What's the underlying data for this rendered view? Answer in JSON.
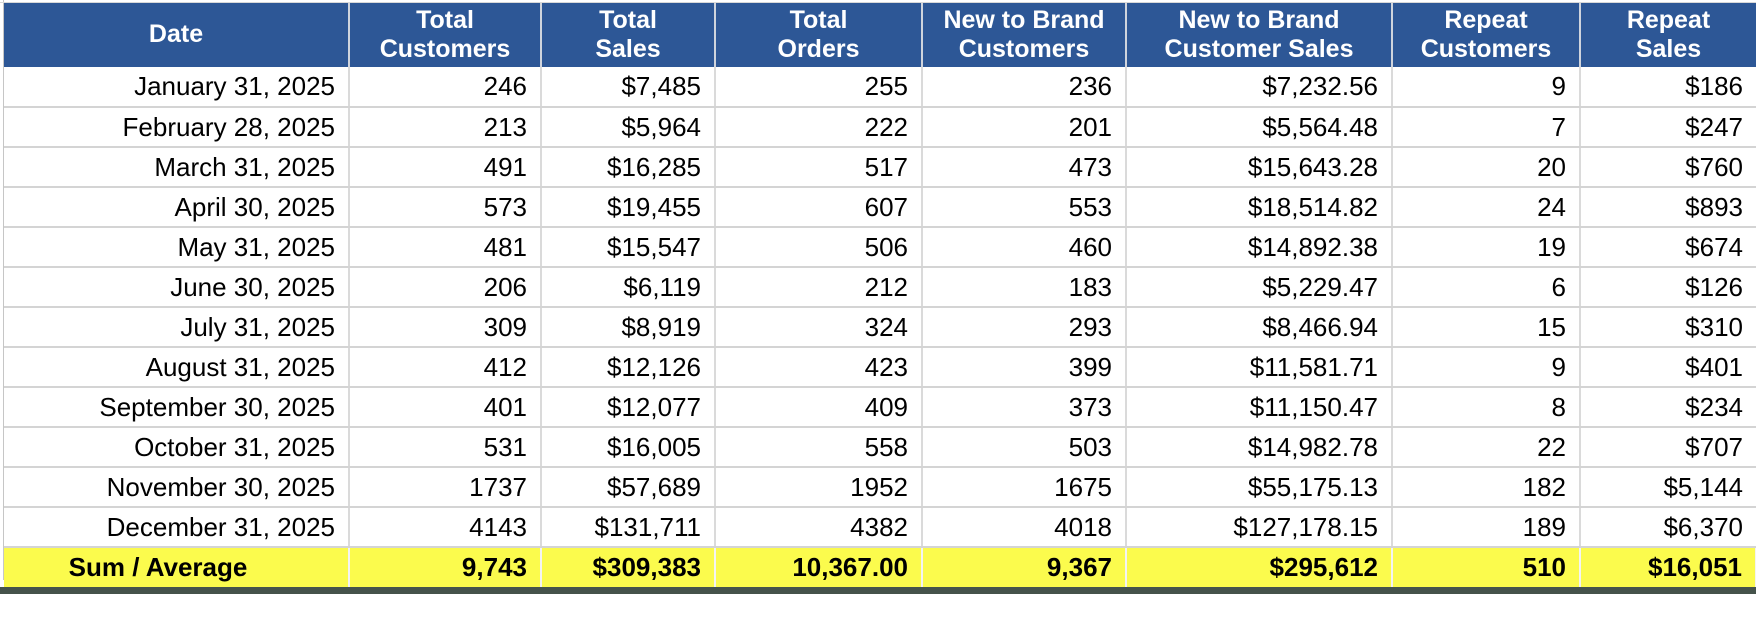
{
  "chart_data": {
    "type": "table",
    "columns": [
      "Date",
      "Total\nCustomers",
      "Total\nSales",
      "Total\nOrders",
      "New to Brand\nCustomers",
      "New to Brand\nCustomer Sales",
      "Repeat\nCustomers",
      "Repeat\nSales"
    ],
    "rows": [
      [
        "January 31, 2025",
        "246",
        "$7,485",
        "255",
        "236",
        "$7,232.56",
        "9",
        "$186"
      ],
      [
        "February 28, 2025",
        "213",
        "$5,964",
        "222",
        "201",
        "$5,564.48",
        "7",
        "$247"
      ],
      [
        "March 31, 2025",
        "491",
        "$16,285",
        "517",
        "473",
        "$15,643.28",
        "20",
        "$760"
      ],
      [
        "April 30, 2025",
        "573",
        "$19,455",
        "607",
        "553",
        "$18,514.82",
        "24",
        "$893"
      ],
      [
        "May 31, 2025",
        "481",
        "$15,547",
        "506",
        "460",
        "$14,892.38",
        "19",
        "$674"
      ],
      [
        "June 30, 2025",
        "206",
        "$6,119",
        "212",
        "183",
        "$5,229.47",
        "6",
        "$126"
      ],
      [
        "July 31, 2025",
        "309",
        "$8,919",
        "324",
        "293",
        "$8,466.94",
        "15",
        "$310"
      ],
      [
        "August 31, 2025",
        "412",
        "$12,126",
        "423",
        "399",
        "$11,581.71",
        "9",
        "$401"
      ],
      [
        "September 30, 2025",
        "401",
        "$12,077",
        "409",
        "373",
        "$11,150.47",
        "8",
        "$234"
      ],
      [
        "October 31, 2025",
        "531",
        "$16,005",
        "558",
        "503",
        "$14,982.78",
        "22",
        "$707"
      ],
      [
        "November 30, 2025",
        "1737",
        "$57,689",
        "1952",
        "1675",
        "$55,175.13",
        "182",
        "$5,144"
      ],
      [
        "December 31, 2025",
        "4143",
        "$131,711",
        "4382",
        "4018",
        "$127,178.15",
        "189",
        "$6,370"
      ]
    ],
    "summary": [
      "Sum / Average",
      "9,743",
      "$309,383",
      "10,367.00",
      "9,367",
      "$295,612",
      "510",
      "$16,051"
    ]
  },
  "colors": {
    "header_background": "#2d5796",
    "header_text": "#ffffff",
    "summary_background": "#fbfb4d",
    "body_text": "#000000",
    "gridline": "#d4d4d4",
    "bottom_edge": "#45534b"
  }
}
